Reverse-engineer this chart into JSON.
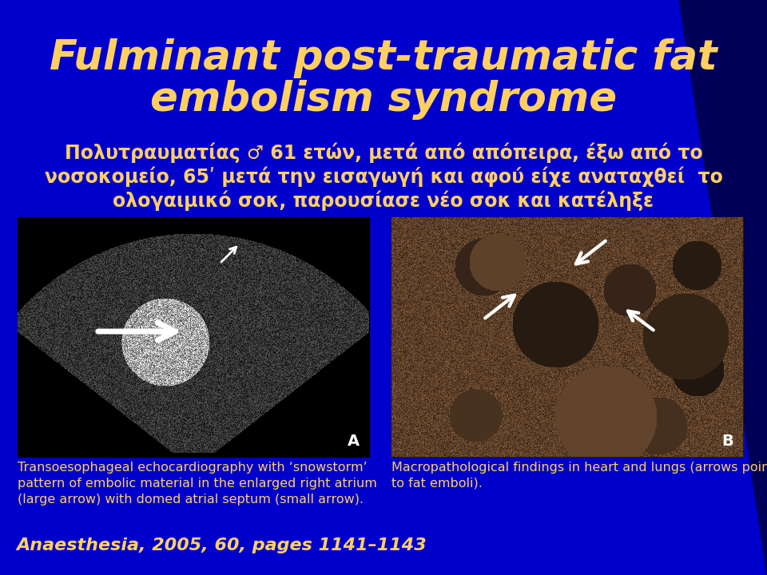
{
  "title_line1": "Fulminant post-traumatic fat",
  "title_line2": "embolism syndrome",
  "title_color": "#FFD060",
  "subtitle_line1": "Πολυτραυματίας ♂ 61 ετών, μετά από απόπειρα, έξω από το",
  "subtitle_line2": "νοσοκομείο, 65ʹ μετά την εισαγωγή και αφού είχε αναταχθεί  το",
  "subtitle_line3": "ολογαιμικό σοκ, παρουσίασε νέο σοκ και κατέληξε",
  "subtitle_color": "#FFD060",
  "caption_left": "Transoesophageal echocardiography with ‘snowstorm’\npattern of embolic material in the enlarged right atrium\n(large arrow) with domed atrial septum (small arrow).",
  "caption_right": "Macropathological findings in heart and lungs (arrows point\nto fat emboli).",
  "caption_color": "#FFD060",
  "footer": "Anaesthesia, 2005, 60, pages 1141–1143",
  "footer_color": "#FFD060",
  "bg_color": "#0000CC",
  "label_a": "A",
  "label_b": "B"
}
